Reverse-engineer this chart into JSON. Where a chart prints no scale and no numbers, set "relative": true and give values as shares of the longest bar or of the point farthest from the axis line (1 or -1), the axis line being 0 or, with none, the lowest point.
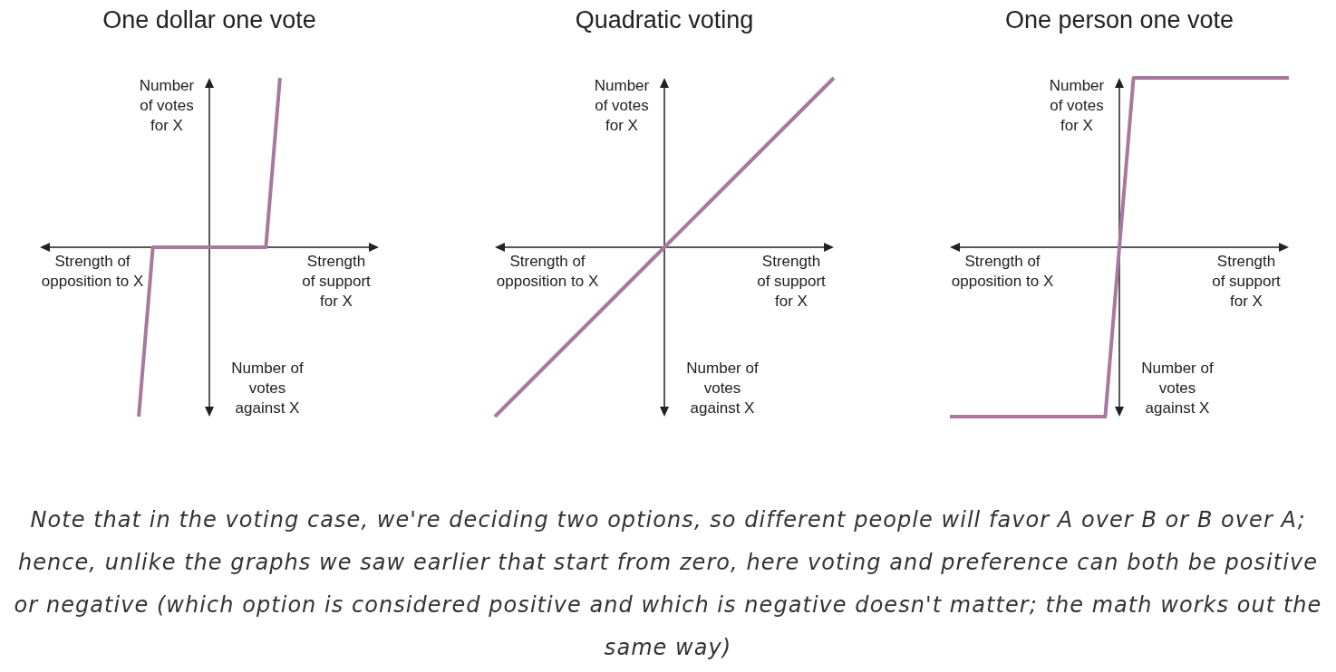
{
  "chart_data": [
    {
      "type": "line",
      "title": "One dollar one vote",
      "xlabel": "Strength of support for X",
      "ylabel": "Number of votes for X",
      "annotations": [
        "Strength of opposition to X",
        "Number of votes against X"
      ],
      "categories": [
        null,
        null,
        null,
        null,
        null,
        null,
        null,
        null,
        null,
        null,
        null,
        null,
        null,
        null,
        null,
        null,
        null,
        null,
        null,
        null,
        null,
        null,
        null,
        null,
        null
      ],
      "values": [
        null,
        null,
        null,
        null,
        null,
        null,
        null,
        -1,
        0,
        0,
        0,
        0,
        0,
        0,
        0,
        0,
        0,
        1,
        null,
        null,
        null,
        null,
        null,
        null,
        null
      ],
      "color": "#a9789f",
      "relative": true
    },
    {
      "type": "line",
      "title": "Quadratic voting",
      "xlabel": "Strength of support for X",
      "ylabel": "Number of votes for X",
      "annotations": [
        "Strength of opposition to X",
        "Number of votes against X"
      ],
      "categories": [
        null,
        null,
        null,
        null,
        null,
        null,
        null,
        null,
        null
      ],
      "values": [
        -1,
        -0.75,
        -0.5,
        -0.25,
        0,
        0.25,
        0.5,
        0.75,
        1
      ],
      "color": "#a9789f",
      "relative": true
    },
    {
      "type": "line",
      "title": "One person one vote",
      "xlabel": "Strength of support for X",
      "ylabel": "Number of votes for X",
      "annotations": [
        "Strength of opposition to X",
        "Number of votes against X"
      ],
      "categories": [
        null,
        null,
        null,
        null,
        null,
        null,
        null,
        null,
        null,
        null,
        null,
        null,
        null,
        null,
        null,
        null,
        null,
        null,
        null,
        null,
        null,
        null,
        null,
        null,
        null
      ],
      "values": [
        -1,
        -1,
        -1,
        -1,
        -1,
        -1,
        -1,
        -1,
        -1,
        -1,
        -1,
        -1,
        0,
        1,
        1,
        1,
        1,
        1,
        1,
        1,
        1,
        1,
        1,
        1,
        1
      ],
      "color": "#a9789f",
      "relative": true
    },
    {
      "type": "other",
      "annotations": [
        "Note that in the voting case, we're deciding two options, so different people will favor A over B or B over A; hence, unlike the graphs we saw earlier that start from zero, here voting and preference can both be positive or negative (which option is considered positive and which is negative doesn't matter; the math works out the same way)"
      ]
    }
  ]
}
